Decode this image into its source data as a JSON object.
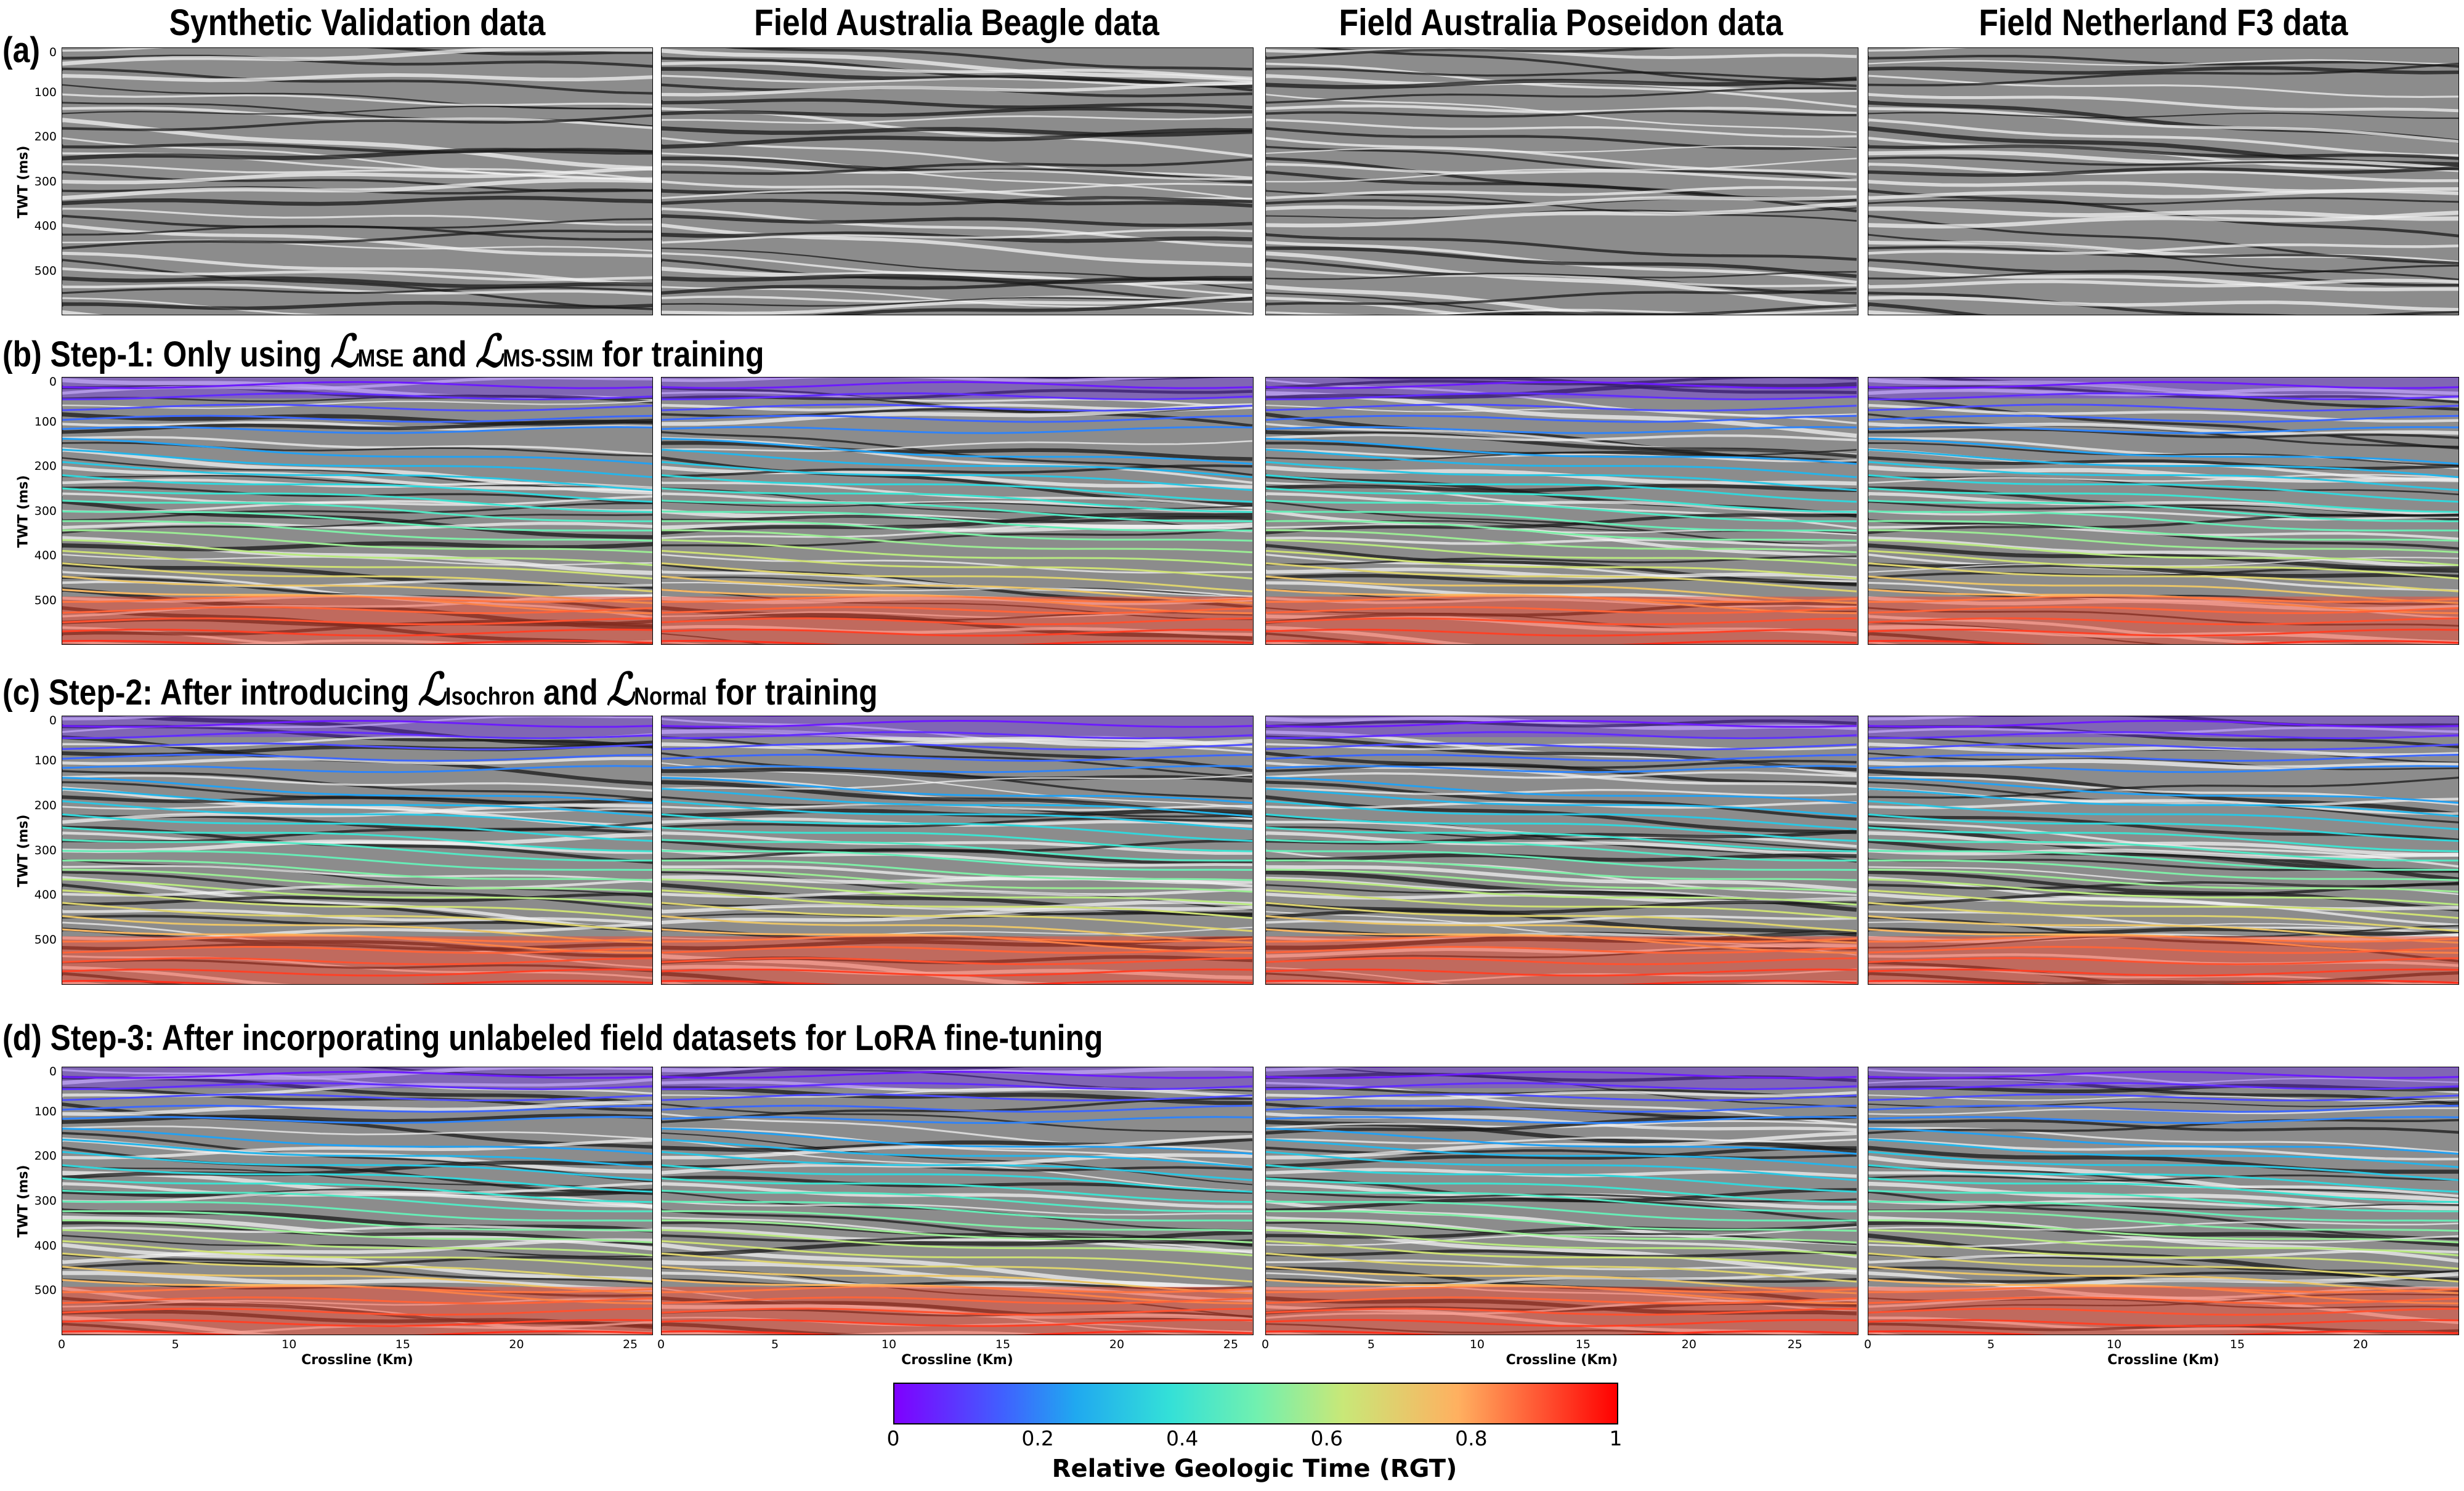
{
  "column_titles": [
    "Synthetic Validation data",
    "Field Australia Beagle data",
    "Field Australia Poseidon data",
    "Field Netherland F3 data"
  ],
  "rows": [
    {
      "tag": "(a)",
      "title": null
    },
    {
      "tag": "(b)",
      "pre": "Step-1: Only using ",
      "L1": "ℒ",
      "s1": "MSE",
      "mid": " and ",
      "L2": "ℒ",
      "s2": "MS-SSIM",
      "post": " for training"
    },
    {
      "tag": "(c)",
      "pre": "Step-2: After introducing ",
      "L1": "ℒ",
      "s1": "Isochron",
      "mid": " and ",
      "L2": "ℒ",
      "s2": "Normal",
      "post": " for training"
    },
    {
      "tag": "(d)",
      "pre": "Step-3: After incorporating unlabeled field datasets for LoRA fine-tuning"
    }
  ],
  "y_axis_label": "TWT (ms)",
  "y_ticks": [
    "0",
    "100",
    "200",
    "300",
    "400",
    "500"
  ],
  "x_axis_label": "Crossline (Km)",
  "x_ticks": [
    [
      "0",
      "5",
      "10",
      "15",
      "20",
      "25"
    ],
    [
      "0",
      "5",
      "10",
      "15",
      "20",
      "25"
    ],
    [
      "0",
      "5",
      "10",
      "15",
      "20",
      "25"
    ],
    [
      "0",
      "5",
      "10",
      "15",
      "20"
    ]
  ],
  "colorbar": {
    "label": "Relative Geologic Time (RGT)",
    "ticks": [
      "0",
      "0.2",
      "0.4",
      "0.6",
      "0.8",
      "1"
    ]
  }
}
